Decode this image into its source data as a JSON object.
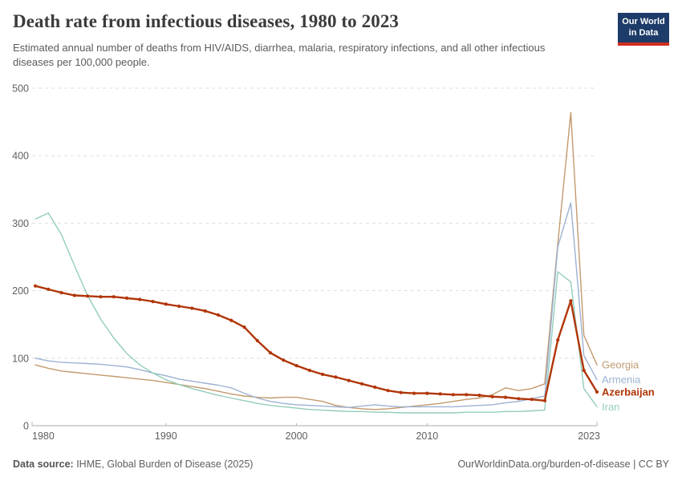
{
  "header": {
    "title": "Death rate from infectious diseases, 1980 to 2023",
    "subtitle": "Estimated annual number of deaths from HIV/AIDS, diarrhea, malaria, respiratory infections, and all other infectious diseases per 100,000 people.",
    "logo": {
      "line1": "Our World",
      "line2": "in Data",
      "bg_color": "#1e3c69",
      "stripe_color": "#d02f20"
    }
  },
  "chart_data": {
    "type": "line",
    "title": "Death rate from infectious diseases, 1980 to 2023",
    "xlabel": "",
    "ylabel": "",
    "ylim": [
      0,
      500
    ],
    "yticks": [
      0,
      100,
      200,
      300,
      400,
      500
    ],
    "xticks": [
      1980,
      1990,
      2000,
      2010,
      2023
    ],
    "grid": "horizontal-dashed",
    "legend_position": "right-end-labels",
    "x": [
      1980,
      1981,
      1982,
      1983,
      1984,
      1985,
      1986,
      1987,
      1988,
      1989,
      1990,
      1991,
      1992,
      1993,
      1994,
      1995,
      1996,
      1997,
      1998,
      1999,
      2000,
      2001,
      2002,
      2003,
      2004,
      2005,
      2006,
      2007,
      2008,
      2009,
      2010,
      2011,
      2012,
      2013,
      2014,
      2015,
      2016,
      2017,
      2018,
      2019,
      2020,
      2021,
      2022,
      2023
    ],
    "series": [
      {
        "name": "Georgia",
        "color": "#c39a6d",
        "label_color": "#bf9c72",
        "highlight": false,
        "values": [
          90,
          85,
          81,
          79,
          77,
          75,
          73,
          71,
          69,
          67,
          64,
          61,
          58,
          55,
          51,
          47,
          44,
          42,
          41,
          42,
          42,
          39,
          36,
          30,
          27,
          25,
          24,
          25,
          27,
          29,
          31,
          33,
          36,
          39,
          41,
          46,
          56,
          52,
          55,
          62,
          270,
          464,
          134,
          90
        ]
      },
      {
        "name": "Armenia",
        "color": "#9db2d3",
        "label_color": "#9fb5d5",
        "highlight": false,
        "values": [
          100,
          96,
          94,
          93,
          92,
          91,
          89,
          87,
          83,
          78,
          74,
          69,
          66,
          63,
          60,
          56,
          48,
          41,
          36,
          33,
          31,
          30,
          29,
          28,
          27,
          29,
          31,
          29,
          28,
          28,
          28,
          28,
          28,
          29,
          30,
          31,
          34,
          36,
          40,
          44,
          265,
          330,
          104,
          68
        ]
      },
      {
        "name": "Azerbaijan",
        "color": "#b13507",
        "label_color": "#b13507",
        "highlight": true,
        "values": [
          207,
          202,
          197,
          193,
          192,
          191,
          191,
          189,
          187,
          184,
          180,
          177,
          174,
          170,
          164,
          156,
          146,
          126,
          108,
          97,
          89,
          82,
          76,
          72,
          67,
          62,
          57,
          52,
          49,
          48,
          48,
          47,
          46,
          46,
          45,
          43,
          42,
          40,
          39,
          37,
          127,
          185,
          82,
          50
        ]
      },
      {
        "name": "Iran",
        "color": "#92cdba",
        "label_color": "#96d0bd",
        "highlight": false,
        "values": [
          306,
          315,
          283,
          237,
          193,
          158,
          130,
          107,
          90,
          78,
          68,
          61,
          55,
          50,
          45,
          41,
          37,
          33,
          30,
          28,
          26,
          24,
          23,
          22,
          21,
          21,
          20,
          20,
          19,
          19,
          19,
          19,
          19,
          20,
          20,
          20,
          21,
          21,
          22,
          23,
          228,
          213,
          55,
          28
        ]
      }
    ]
  },
  "footer": {
    "source_label": "Data source:",
    "source_text": " IHME, Global Burden of Disease (2025)",
    "credit": "OurWorldinData.org/burden-of-disease | CC BY"
  }
}
